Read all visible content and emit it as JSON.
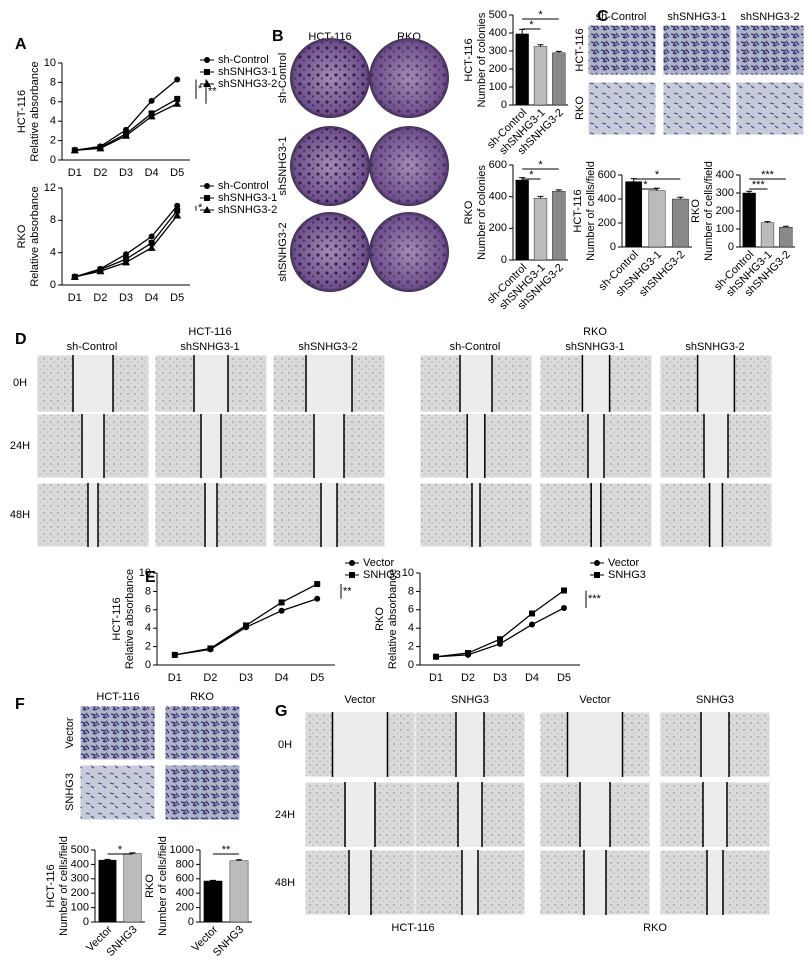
{
  "panel_letters": [
    "A",
    "B",
    "C",
    "D",
    "E",
    "F",
    "G"
  ],
  "chart_data": [
    {
      "type": "line",
      "ylabel": [
        "HCT-116",
        "Relative absorbance"
      ],
      "categories": [
        "D1",
        "D2",
        "D3",
        "D4",
        "D5"
      ],
      "ylim": [
        0,
        10
      ],
      "yticks": [
        0,
        2,
        4,
        6,
        8,
        10
      ],
      "series": [
        {
          "name": "sh-Control",
          "color": "#000000",
          "values": [
            1,
            1.4,
            3.1,
            6.1,
            8.3
          ]
        },
        {
          "name": "shSNHG3-1",
          "color": "#000000",
          "values": [
            1,
            1.3,
            2.7,
            4.8,
            6.3
          ]
        },
        {
          "name": "shSNHG3-2",
          "color": "#000000",
          "values": [
            1,
            1.2,
            2.5,
            4.5,
            5.8
          ]
        }
      ],
      "annotations": [
        "*",
        "**"
      ]
    },
    {
      "type": "line",
      "ylabel": [
        "RKO",
        "Relative absorbance"
      ],
      "categories": [
        "D1",
        "D2",
        "D3",
        "D4",
        "D5"
      ],
      "ylim": [
        0,
        12
      ],
      "yticks": [
        0,
        4,
        8,
        12
      ],
      "series": [
        {
          "name": "sh-Control",
          "color": "#000000",
          "values": [
            1,
            2,
            3.8,
            6,
            9.8
          ]
        },
        {
          "name": "shSNHG3-1",
          "color": "#000000",
          "values": [
            1,
            1.9,
            3.2,
            5.2,
            9.2
          ]
        },
        {
          "name": "shSNHG3-2",
          "color": "#000000",
          "values": [
            1,
            1.7,
            2.8,
            4.6,
            8.6
          ]
        }
      ],
      "annotations": [
        "*"
      ]
    },
    {
      "type": "bar",
      "ylabel": [
        "HCT-116",
        "Number of colonies"
      ],
      "categories": [
        "sh-Control",
        "shSNHG3-1",
        "shSNHG3-2"
      ],
      "values": [
        395,
        325,
        290
      ],
      "errors": [
        25,
        10,
        8
      ],
      "colors": [
        "#000000",
        "#bbbbbb",
        "#888888"
      ],
      "ylim": [
        0,
        500
      ],
      "yticks": [
        0,
        100,
        200,
        300,
        400,
        500
      ],
      "annotations": [
        "*",
        "*"
      ]
    },
    {
      "type": "bar",
      "ylabel": [
        "RKO",
        "Number of colonies"
      ],
      "categories": [
        "sh-Control",
        "shSNHG3-1",
        "shSNHG3-2"
      ],
      "values": [
        505,
        390,
        435
      ],
      "errors": [
        15,
        12,
        8
      ],
      "colors": [
        "#000000",
        "#bbbbbb",
        "#888888"
      ],
      "ylim": [
        0,
        600
      ],
      "yticks": [
        0,
        200,
        400,
        600
      ],
      "annotations": [
        "*",
        "*"
      ]
    },
    {
      "type": "bar",
      "ylabel": [
        "HCT-116",
        "Number of cells/field"
      ],
      "categories": [
        "sh-Control",
        "shSNHG3-1",
        "shSNHG3-2"
      ],
      "values": [
        545,
        470,
        400
      ],
      "errors": [
        25,
        20,
        15
      ],
      "colors": [
        "#000000",
        "#bbbbbb",
        "#888888"
      ],
      "ylim": [
        0,
        600
      ],
      "yticks": [
        0,
        200,
        400,
        600
      ],
      "annotations": [
        "*",
        "*"
      ]
    },
    {
      "type": "bar",
      "ylabel": [
        "RKO",
        "Number of cells/field"
      ],
      "categories": [
        "sh-Control",
        "shSNHG3-1",
        "shSNHG3-2"
      ],
      "values": [
        300,
        135,
        110
      ],
      "errors": [
        10,
        6,
        5
      ],
      "colors": [
        "#000000",
        "#bbbbbb",
        "#888888"
      ],
      "ylim": [
        0,
        400
      ],
      "yticks": [
        0,
        100,
        200,
        300,
        400
      ],
      "annotations": [
        "***",
        "***"
      ]
    },
    {
      "type": "line",
      "ylabel": [
        "HCT-116",
        "Relative absorbance"
      ],
      "categories": [
        "D1",
        "D2",
        "D3",
        "D4",
        "D5"
      ],
      "ylim": [
        0,
        10
      ],
      "yticks": [
        0,
        2,
        4,
        6,
        8,
        10
      ],
      "series": [
        {
          "name": "Vector",
          "color": "#000000",
          "values": [
            1.1,
            1.7,
            4.1,
            5.9,
            7.2
          ]
        },
        {
          "name": "SNHG3",
          "color": "#000000",
          "values": [
            1.1,
            1.8,
            4.3,
            6.8,
            8.8
          ]
        }
      ],
      "annotations": [
        "**"
      ]
    },
    {
      "type": "line",
      "ylabel": [
        "RKO",
        "Relative absorbance"
      ],
      "categories": [
        "D1",
        "D2",
        "D3",
        "D4",
        "D5"
      ],
      "ylim": [
        0,
        10
      ],
      "yticks": [
        0,
        2,
        4,
        6,
        8,
        10
      ],
      "series": [
        {
          "name": "Vector",
          "color": "#000000",
          "values": [
            0.9,
            1.1,
            2.3,
            4.4,
            6.2
          ]
        },
        {
          "name": "SNHG3",
          "color": "#000000",
          "values": [
            0.9,
            1.3,
            2.8,
            5.6,
            8.1
          ]
        }
      ],
      "annotations": [
        "***"
      ]
    },
    {
      "type": "bar",
      "ylabel": [
        "HCT-116",
        "Number of cells/field"
      ],
      "categories": [
        "Vector",
        "SNHG3"
      ],
      "values": [
        430,
        475
      ],
      "errors": [
        5,
        5
      ],
      "colors": [
        "#000000",
        "#bbbbbb"
      ],
      "ylim": [
        0,
        500
      ],
      "yticks": [
        0,
        100,
        200,
        300,
        400,
        500
      ],
      "annotations": [
        "*"
      ]
    },
    {
      "type": "bar",
      "ylabel": [
        "RKO",
        "Number of cells/field"
      ],
      "categories": [
        "Vector",
        "SNHG3"
      ],
      "values": [
        570,
        850
      ],
      "errors": [
        8,
        15
      ],
      "colors": [
        "#000000",
        "#bbbbbb"
      ],
      "ylim": [
        0,
        1000
      ],
      "yticks": [
        0,
        200,
        400,
        600,
        800,
        1000
      ],
      "annotations": [
        "**"
      ]
    }
  ],
  "panel_B": {
    "columns": [
      "HCT-116",
      "RKO"
    ],
    "rows": [
      "sh-Control",
      "shSNHG3-1",
      "shSNHG3-2"
    ]
  },
  "panel_C": {
    "columns": [
      "sh-Control",
      "shSNHG3-1",
      "shSNHG3-2"
    ],
    "rows": [
      "HCT-116",
      "RKO"
    ]
  },
  "panel_D": {
    "groups": [
      "HCT-116",
      "RKO"
    ],
    "columns": [
      "sh-Control",
      "shSNHG3-1",
      "shSNHG3-2"
    ],
    "rows": [
      "0H",
      "24H",
      "48H"
    ]
  },
  "panel_F": {
    "columns": [
      "HCT-116",
      "RKO"
    ],
    "rows": [
      "Vector",
      "SNHG3"
    ]
  },
  "panel_G": {
    "groups": [
      "HCT-116",
      "RKO"
    ],
    "columns": [
      "Vector",
      "SNHG3"
    ],
    "rows": [
      "0H",
      "24H",
      "48H"
    ]
  }
}
